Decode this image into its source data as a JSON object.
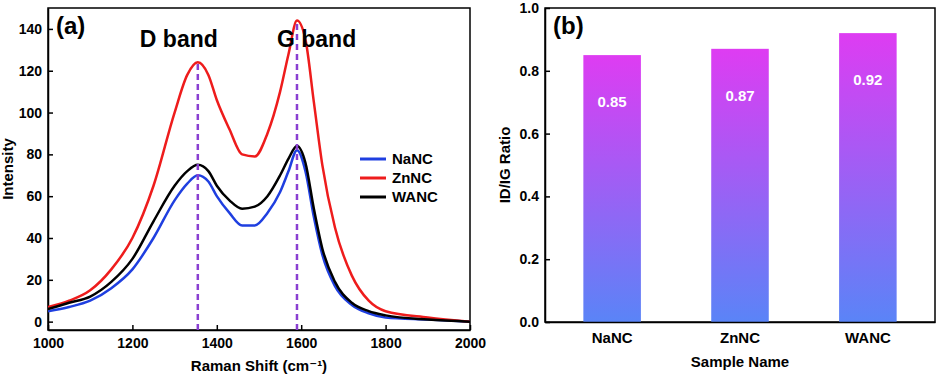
{
  "chart_data": [
    {
      "type": "line",
      "title": "(a)",
      "x_label": "Raman Shift (cm⁻¹)",
      "y_label": "Intensity",
      "x": [
        1000,
        1050,
        1100,
        1150,
        1200,
        1250,
        1300,
        1330,
        1355,
        1380,
        1400,
        1430,
        1460,
        1490,
        1520,
        1550,
        1570,
        1590,
        1610,
        1630,
        1650,
        1680,
        1720,
        1760,
        1800,
        1900,
        2000
      ],
      "series": [
        {
          "name": "NaNC",
          "color": "#1f3fe0",
          "values": [
            5,
            7,
            10,
            16,
            25,
            40,
            58,
            66,
            70,
            67,
            60,
            52,
            46,
            46,
            52,
            62,
            72,
            82,
            72,
            50,
            32,
            17,
            8,
            4,
            2,
            1,
            0
          ]
        },
        {
          "name": "ZnNC",
          "color": "#ee1c1c",
          "values": [
            7,
            10,
            15,
            25,
            40,
            65,
            100,
            118,
            124,
            118,
            106,
            92,
            80,
            79,
            90,
            110,
            128,
            144,
            135,
            105,
            75,
            45,
            22,
            10,
            5,
            2,
            0
          ]
        },
        {
          "name": "WANC",
          "color": "#000000",
          "values": [
            6,
            9,
            12,
            19,
            30,
            48,
            65,
            72,
            75,
            72,
            65,
            58,
            54,
            55,
            60,
            70,
            78,
            84,
            76,
            54,
            35,
            19,
            9,
            5,
            3,
            1,
            0
          ]
        }
      ],
      "annotations": [
        {
          "text": "D band",
          "x": 1355
        },
        {
          "text": "G band",
          "x": 1590
        }
      ],
      "xlim": [
        1000,
        2000
      ],
      "xticks": [
        1000,
        1200,
        1400,
        1600,
        1800,
        2000
      ],
      "ylim": [
        -4,
        150
      ],
      "yticks": [
        0,
        20,
        40,
        60,
        80,
        100,
        120,
        140
      ],
      "legend": "right",
      "grid": false
    },
    {
      "type": "bar",
      "title": "(b)",
      "x_label": "Sample Name",
      "y_label": "ID/IG Ratio",
      "categories": [
        "NaNC",
        "ZnNC",
        "WANC"
      ],
      "values": [
        0.85,
        0.87,
        0.92
      ],
      "color": "#de3cf2",
      "ylim": [
        0,
        1.0
      ],
      "yticks": [
        {
          "value": 0,
          "label": "0.0"
        },
        0.2,
        0.4,
        0.6,
        0.8,
        {
          "value": 1,
          "label": "1.0"
        }
      ],
      "data_labels": true,
      "grid": false
    }
  ]
}
